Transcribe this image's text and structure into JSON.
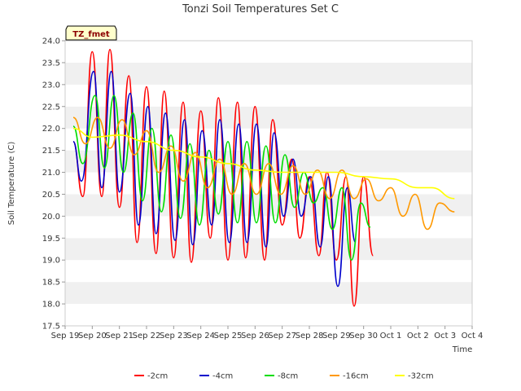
{
  "chart_data": {
    "type": "line",
    "title": "Tonzi Soil Temperatures Set C",
    "xlabel": "Time",
    "ylabel": "Soil Temperature (C)",
    "ylim": [
      17.5,
      24.0
    ],
    "xlim": [
      0,
      15
    ],
    "yticks": [
      17.5,
      18.0,
      18.5,
      19.0,
      19.5,
      20.0,
      20.5,
      21.0,
      21.5,
      22.0,
      22.5,
      23.0,
      23.5,
      24.0
    ],
    "ytick_labels": [
      "17.5",
      "18.0",
      "18.5",
      "19.0",
      "19.5",
      "20.0",
      "20.5",
      "21.0",
      "21.5",
      "22.0",
      "22.5",
      "23.0",
      "23.5",
      "24.0"
    ],
    "xticks": [
      0,
      1,
      2,
      3,
      4,
      5,
      6,
      7,
      8,
      9,
      10,
      11,
      12,
      13,
      14,
      15
    ],
    "xtick_labels": [
      "Sep 19",
      "Sep 20",
      "Sep 21",
      "Sep 22",
      "Sep 23",
      "Sep 24",
      "Sep 25",
      "Sep 26",
      "Sep 27",
      "Sep 28",
      "Sep 29",
      "Sep 30",
      "Oct 1",
      "Oct 2",
      "Oct 3",
      "Oct 4"
    ],
    "grid": "horizontal bands",
    "legend_position": "bottom",
    "annotation": "TZ_fmet",
    "series": [
      {
        "name": "-2cm",
        "color": "#ff0000",
        "x": [
          0.3,
          0.65,
          1.0,
          1.35,
          1.65,
          2.0,
          2.35,
          2.65,
          3.0,
          3.35,
          3.65,
          4.0,
          4.35,
          4.65,
          5.0,
          5.35,
          5.65,
          6.0,
          6.35,
          6.65,
          7.0,
          7.35,
          7.65,
          8.0,
          8.35,
          8.65,
          9.0,
          9.35,
          9.65,
          10.0,
          10.35,
          10.65,
          11.0,
          11.35,
          11.65,
          12.0,
          12.35,
          12.65,
          13.0,
          13.35,
          13.65,
          14.0,
          14.35
        ],
        "y": [
          21.7,
          20.45,
          23.75,
          20.45,
          23.8,
          20.2,
          23.2,
          19.4,
          22.95,
          19.15,
          22.85,
          19.05,
          22.6,
          18.95,
          22.4,
          19.5,
          22.7,
          19.0,
          22.6,
          19.05,
          22.5,
          19.0,
          22.2,
          19.8,
          21.3,
          19.5,
          20.9,
          19.1,
          21.0,
          19.0,
          20.9,
          17.95,
          20.9,
          19.1,
          null,
          null,
          null,
          null,
          null,
          null,
          null,
          null,
          null
        ]
      },
      {
        "name": "-4cm",
        "color": "#0000cc",
        "x": [
          0.3,
          0.6,
          1.05,
          1.35,
          1.7,
          2.0,
          2.4,
          2.7,
          3.05,
          3.35,
          3.7,
          4.05,
          4.4,
          4.7,
          5.05,
          5.4,
          5.7,
          6.05,
          6.4,
          6.7,
          7.05,
          7.4,
          7.7,
          8.05,
          8.4,
          8.7,
          9.05,
          9.4,
          9.7,
          10.05,
          10.4,
          10.7,
          11.05,
          11.4,
          11.7,
          12.05,
          12.4,
          12.7,
          13.0,
          13.35,
          13.65,
          14.0,
          14.35
        ],
        "y": [
          21.7,
          20.8,
          23.3,
          20.65,
          23.3,
          20.55,
          22.8,
          19.8,
          22.5,
          19.6,
          22.35,
          19.45,
          22.2,
          19.35,
          21.95,
          19.8,
          22.2,
          19.4,
          22.1,
          19.4,
          22.1,
          19.3,
          21.9,
          20.0,
          21.3,
          20.0,
          20.9,
          19.3,
          20.9,
          18.4,
          20.65,
          19.4,
          null,
          null,
          null,
          null,
          null,
          null,
          null,
          null,
          null,
          null,
          null
        ]
      },
      {
        "name": "-8cm",
        "color": "#00dd00",
        "x": [
          0.3,
          0.65,
          1.1,
          1.45,
          1.8,
          2.15,
          2.5,
          2.85,
          3.2,
          3.55,
          3.9,
          4.25,
          4.6,
          4.95,
          5.3,
          5.65,
          6.0,
          6.35,
          6.7,
          7.05,
          7.4,
          7.75,
          8.1,
          8.45,
          8.8,
          9.15,
          9.5,
          9.85,
          10.2,
          10.55,
          10.9,
          11.25,
          11.6,
          11.95,
          12.3,
          12.65,
          13.0,
          13.35,
          13.7,
          14.05,
          14.35
        ],
        "y": [
          22.05,
          21.2,
          22.75,
          21.1,
          22.75,
          21.0,
          22.35,
          20.35,
          22.0,
          20.1,
          21.85,
          19.95,
          21.65,
          19.8,
          21.5,
          20.05,
          21.7,
          19.85,
          21.7,
          19.85,
          21.6,
          19.85,
          21.4,
          20.2,
          21.0,
          20.3,
          20.65,
          19.7,
          20.65,
          19.0,
          20.3,
          19.75,
          null,
          null,
          null,
          null,
          null,
          null,
          null,
          null,
          null
        ]
      },
      {
        "name": "-16cm",
        "color": "#ff9900",
        "x": [
          0.3,
          0.75,
          1.2,
          1.65,
          2.1,
          2.55,
          3.0,
          3.45,
          3.9,
          4.35,
          4.8,
          5.25,
          5.7,
          6.15,
          6.6,
          7.05,
          7.5,
          7.95,
          8.4,
          8.85,
          9.3,
          9.75,
          10.2,
          10.65,
          11.1,
          11.55,
          12.0,
          12.45,
          12.9,
          13.35,
          13.8,
          14.35
        ],
        "y": [
          22.25,
          21.65,
          22.25,
          21.55,
          22.2,
          21.4,
          21.95,
          21.0,
          21.6,
          20.8,
          21.45,
          20.65,
          21.3,
          20.5,
          21.2,
          20.5,
          21.2,
          20.5,
          21.15,
          20.5,
          21.05,
          20.4,
          21.05,
          20.4,
          20.85,
          20.35,
          20.65,
          20.0,
          20.5,
          19.7,
          20.3,
          20.1
        ]
      },
      {
        "name": "-32cm",
        "color": "#ffff00",
        "x": [
          0.3,
          1.0,
          2.0,
          3.0,
          4.0,
          5.0,
          6.0,
          7.0,
          8.0,
          9.0,
          10.0,
          11.0,
          12.0,
          13.0,
          13.5,
          14.35
        ],
        "y": [
          22.0,
          21.8,
          21.85,
          21.7,
          21.5,
          21.35,
          21.2,
          21.05,
          21.0,
          21.0,
          21.0,
          20.9,
          20.85,
          20.65,
          20.65,
          20.4
        ]
      }
    ]
  }
}
